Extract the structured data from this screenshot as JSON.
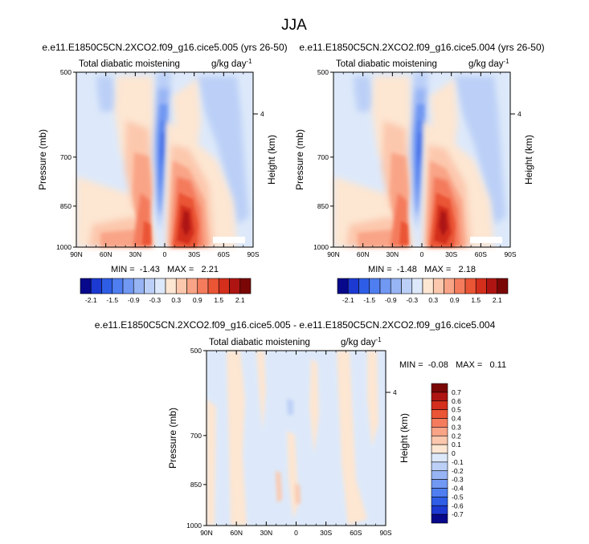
{
  "title": "JJA",
  "panels": [
    {
      "id": "left",
      "case_title": "e.e11.E1850C5CN.2XCO2.f09_g16.cice5.005 (yrs 26-50)",
      "field_label": "Total diabatic moistening",
      "units_base": "g/kg day",
      "units_exp": "-1",
      "ylabel": "Pressure (mb)",
      "ylabel_right": "Height (km)",
      "height_tick": "4",
      "stats": "MIN =  -1.43   MAX =   2.21"
    },
    {
      "id": "middle",
      "case_title": "e.e11.E1850C5CN.2XCO2.f09_g16.cice5.004 (yrs 26-50)",
      "field_label": "Total diabatic moistening",
      "units_base": "g/kg day",
      "units_exp": "-1",
      "ylabel": "Pressure (mb)",
      "ylabel_right": "Height (km)",
      "height_tick": "4",
      "stats": "MIN =  -1.48   MAX =   2.18"
    }
  ],
  "diff_panel": {
    "case_title": "e.e11.E1850C5CN.2XCO2.f09_g16.cice5.005 - e.e11.E1850C5CN.2XCO2.f09_g16.cice5.004",
    "field_label": "Total diabatic moistening",
    "units_base": "g/kg day",
    "units_exp": "-1",
    "ylabel": "Pressure (mb)",
    "ylabel_right": "Height (km)",
    "height_tick": "4",
    "stats": "MIN =  -0.08   MAX =   0.11"
  },
  "axes": {
    "x_ticks": [
      "90N",
      "60N",
      "30N",
      "0",
      "30S",
      "60S",
      "90S"
    ],
    "y_ticks": [
      "500",
      "700",
      "850",
      "1000"
    ]
  },
  "colorbar_main": {
    "colors": [
      "#08088c",
      "#1c3ad2",
      "#2f5ee6",
      "#4f7ef0",
      "#7198f2",
      "#97b4f4",
      "#bcd0f7",
      "#dde9fa",
      "#fde6d2",
      "#fcc8ad",
      "#f9a487",
      "#f47c5d",
      "#ea5535",
      "#d32f1c",
      "#ae1512",
      "#7a0606"
    ],
    "labels": [
      "-2.1",
      "-1.5",
      "-0.9",
      "-0.3",
      "0.3",
      "0.9",
      "1.5",
      "2.1"
    ]
  },
  "colorbar_diff": {
    "colors": [
      "#7a0606",
      "#ae1512",
      "#d32f1c",
      "#ea5535",
      "#f47c5d",
      "#f9a487",
      "#fcc8ad",
      "#fde6d2",
      "#dde9fa",
      "#bcd0f7",
      "#97b4f4",
      "#7198f2",
      "#4f7ef0",
      "#2f5ee6",
      "#1c3ad2",
      "#08088c"
    ],
    "labels": [
      "0.7",
      "0.6",
      "0.5",
      "0.4",
      "0.3",
      "0.2",
      "0.1",
      "0",
      "-0.1",
      "-0.2",
      "-0.3",
      "-0.4",
      "-0.5",
      "-0.6",
      "-0.7"
    ]
  },
  "chart_data": [
    {
      "type": "heatmap",
      "title": "e.e11.E1850C5CN.2XCO2.f09_g16.cice5.005 (yrs 26-50)",
      "subtitle": "Total diabatic moistening",
      "ylabel": "Pressure (mb)",
      "x_ticks": [
        "90N",
        "60N",
        "30N",
        "0",
        "30S",
        "60S",
        "90S"
      ],
      "y_ticks": [
        500,
        700,
        850,
        1000
      ],
      "xlim": [
        90,
        -90
      ],
      "ylim": [
        1000,
        500
      ],
      "min": -1.43,
      "max": 2.21
    },
    {
      "type": "heatmap",
      "title": "e.e11.E1850C5CN.2XCO2.f09_g16.cice5.004 (yrs 26-50)",
      "subtitle": "Total diabatic moistening",
      "ylabel": "Pressure (mb)",
      "x_ticks": [
        "90N",
        "60N",
        "30N",
        "0",
        "30S",
        "60S",
        "90S"
      ],
      "y_ticks": [
        500,
        700,
        850,
        1000
      ],
      "xlim": [
        90,
        -90
      ],
      "ylim": [
        1000,
        500
      ],
      "min": -1.48,
      "max": 2.18
    },
    {
      "type": "heatmap",
      "title": "e.e11.E1850C5CN.2XCO2.f09_g16.cice5.005 - e.e11.E1850C5CN.2XCO2.f09_g16.cice5.004",
      "subtitle": "Total diabatic moistening",
      "ylabel": "Pressure (mb)",
      "x_ticks": [
        "90N",
        "60N",
        "30N",
        "0",
        "30S",
        "60S",
        "90S"
      ],
      "y_ticks": [
        500,
        700,
        850,
        1000
      ],
      "xlim": [
        90,
        -90
      ],
      "ylim": [
        1000,
        500
      ],
      "min": -0.08,
      "max": 0.11
    }
  ]
}
